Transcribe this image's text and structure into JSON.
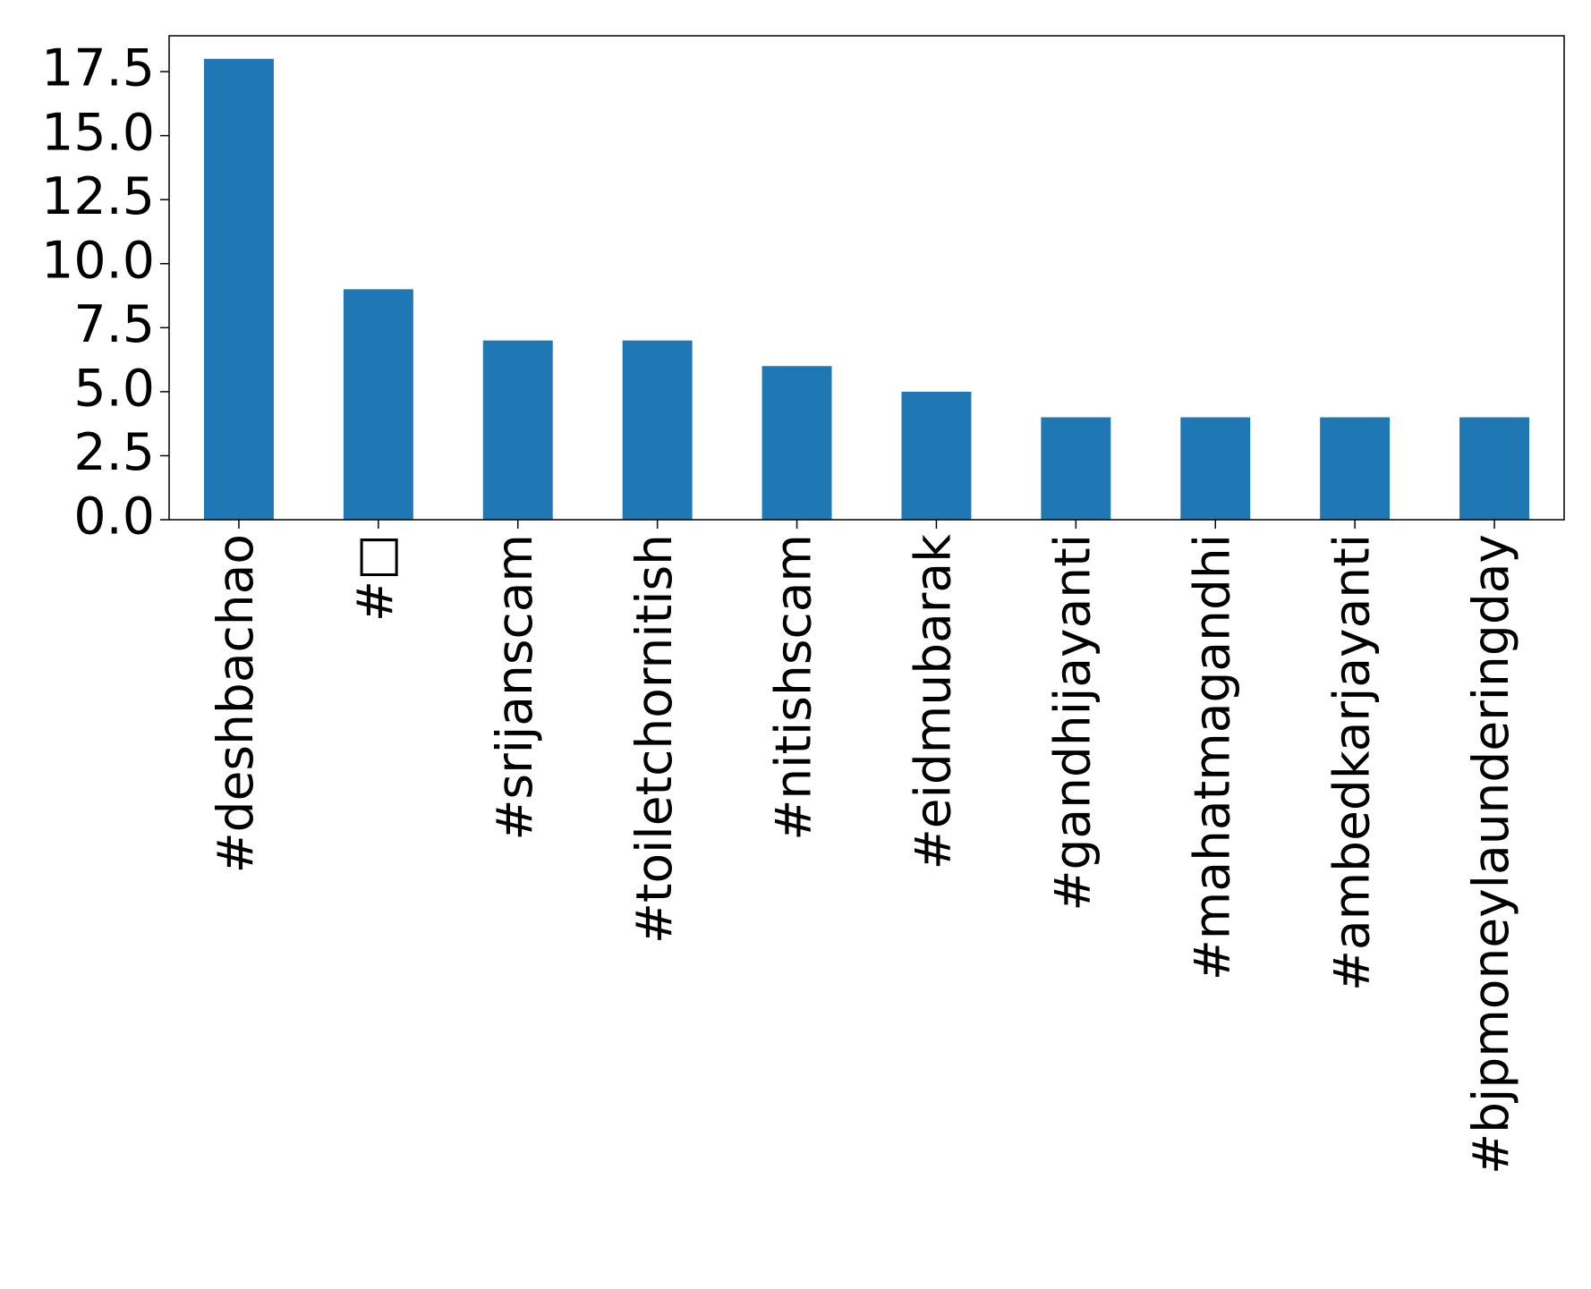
{
  "chart_data": {
    "type": "bar",
    "categories": [
      "#deshbachao",
      "#□",
      "#srijanscam",
      "#toiletchornitish",
      "#nitishscam",
      "#eidmubarak",
      "#gandhijayanti",
      "#mahatmagandhi",
      "#ambedkarjayanti",
      "#bjpmoneylaunderingday"
    ],
    "values": [
      18,
      9,
      7,
      7,
      6,
      5,
      4,
      4,
      4,
      4
    ],
    "color": "#1f77b4",
    "ylim": [
      0,
      18.9
    ],
    "yticks": [
      {
        "value": 0,
        "label": "0.0"
      },
      2.5,
      {
        "value": 5,
        "label": "5.0"
      },
      7.5,
      {
        "value": 10,
        "label": "10.0"
      },
      12.5,
      {
        "value": 15,
        "label": "15.0"
      },
      17.5
    ],
    "grid": false
  }
}
